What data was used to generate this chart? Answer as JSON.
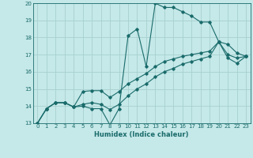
{
  "xlabel": "Humidex (Indice chaleur)",
  "xlim": [
    -0.5,
    23.5
  ],
  "ylim": [
    13,
    20
  ],
  "xticks": [
    0,
    1,
    2,
    3,
    4,
    5,
    6,
    7,
    8,
    9,
    10,
    11,
    12,
    13,
    14,
    15,
    16,
    17,
    18,
    19,
    20,
    21,
    22,
    23
  ],
  "yticks": [
    13,
    14,
    15,
    16,
    17,
    18,
    19,
    20
  ],
  "bg_color": "#c5e8e8",
  "grid_color": "#a8d0d0",
  "line_color": "#1a6b6b",
  "line1_x": [
    0,
    1,
    2,
    3,
    4,
    5,
    6,
    7,
    8,
    9,
    10,
    11,
    12,
    13,
    14,
    15,
    16,
    17,
    18,
    19,
    20,
    21,
    22,
    23
  ],
  "line1_y": [
    13.0,
    13.85,
    14.2,
    14.2,
    13.95,
    14.0,
    13.85,
    13.85,
    12.9,
    13.85,
    18.1,
    18.5,
    16.3,
    20.0,
    19.75,
    19.75,
    19.5,
    19.25,
    18.9,
    18.9,
    17.75,
    17.6,
    17.1,
    16.9
  ],
  "line2_x": [
    0,
    1,
    2,
    3,
    4,
    5,
    6,
    7,
    8,
    9,
    10,
    11,
    12,
    13,
    14,
    15,
    16,
    17,
    18,
    19,
    20,
    21,
    22,
    23
  ],
  "line2_y": [
    13.0,
    13.85,
    14.2,
    14.2,
    13.95,
    14.85,
    14.9,
    14.9,
    14.5,
    14.85,
    15.3,
    15.6,
    15.9,
    16.3,
    16.6,
    16.75,
    16.9,
    17.0,
    17.1,
    17.2,
    17.75,
    17.0,
    16.8,
    16.9
  ],
  "line3_x": [
    0,
    1,
    2,
    3,
    4,
    5,
    6,
    7,
    8,
    9,
    10,
    11,
    12,
    13,
    14,
    15,
    16,
    17,
    18,
    19,
    20,
    21,
    22,
    23
  ],
  "line3_y": [
    13.0,
    13.85,
    14.2,
    14.2,
    13.95,
    14.1,
    14.2,
    14.1,
    13.8,
    14.1,
    14.6,
    15.0,
    15.3,
    15.7,
    16.0,
    16.2,
    16.45,
    16.6,
    16.75,
    16.9,
    17.75,
    16.8,
    16.5,
    16.9
  ]
}
